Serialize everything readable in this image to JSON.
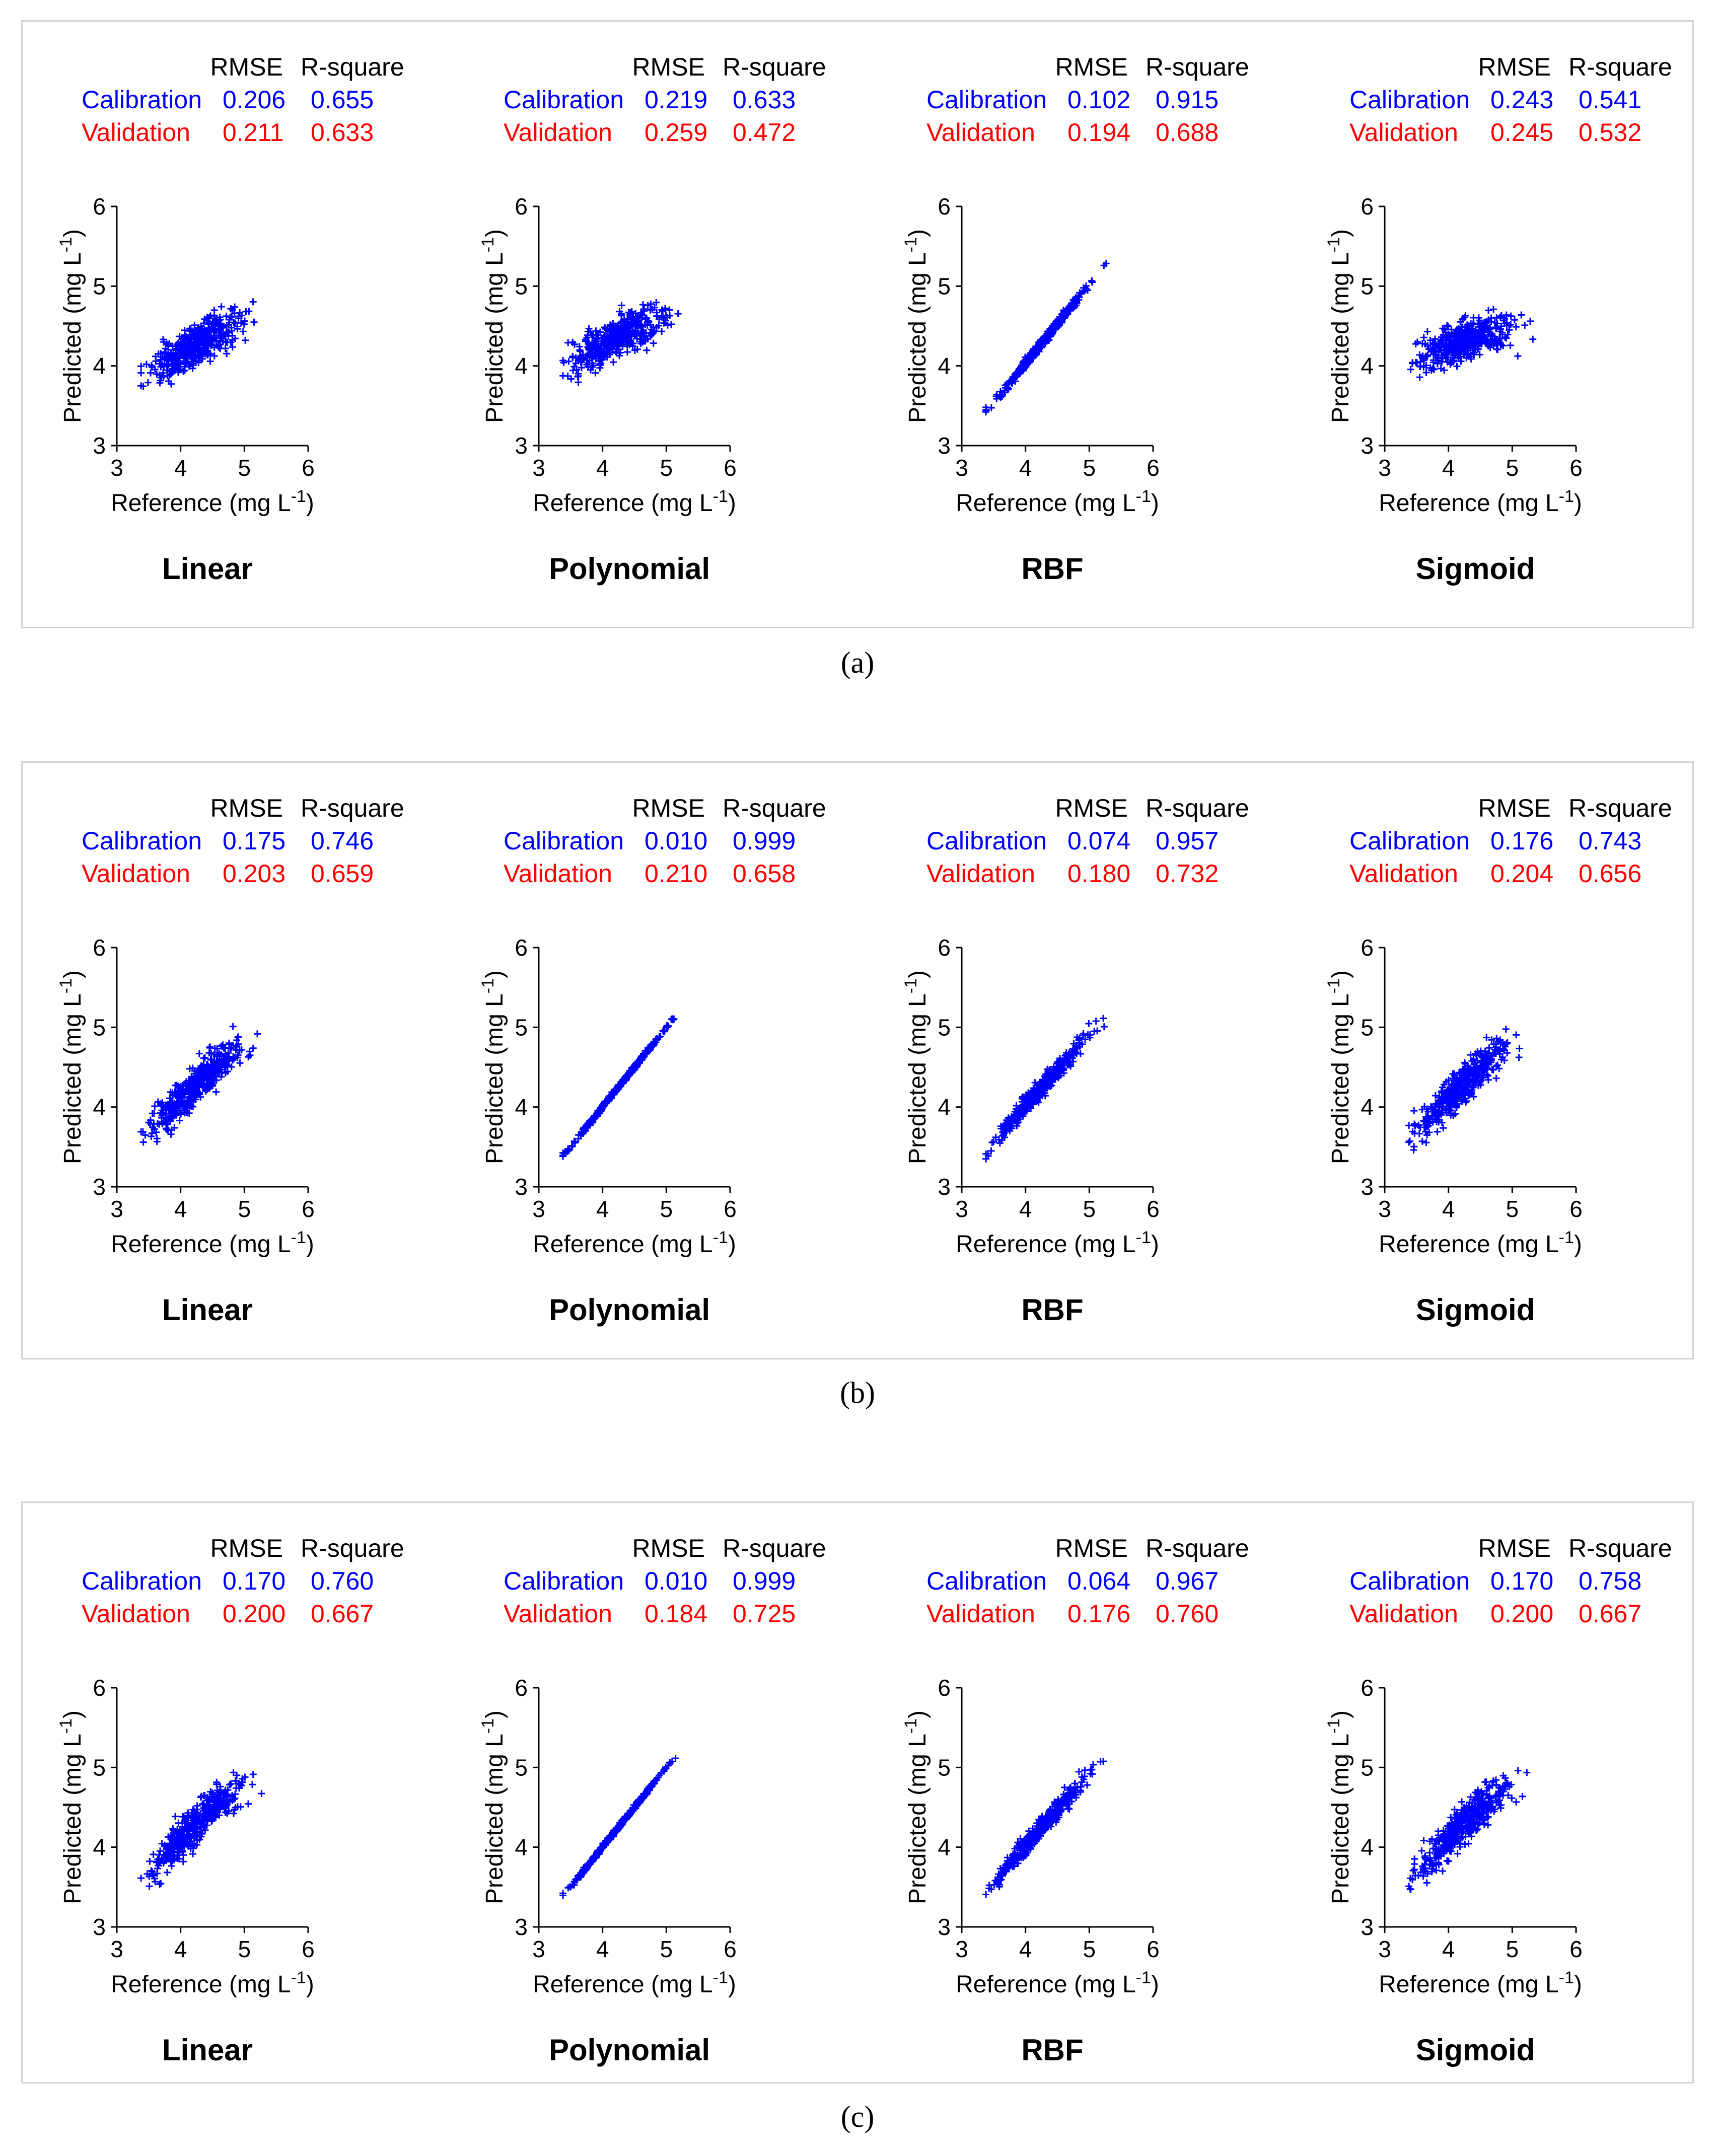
{
  "colors": {
    "calibration": "#0000ff",
    "validation": "#ff0000",
    "points": "#0000ff"
  },
  "panels": [
    {
      "label": "(a)",
      "subplots": [
        {
          "model": "Linear",
          "rmse_label": "RMSE",
          "r2_label": "R-square",
          "calibration": {
            "label": "Calibration",
            "rmse": "0.206",
            "r2": "0.655"
          },
          "validation": {
            "label": "Validation",
            "rmse": "0.211",
            "r2": "0.633"
          }
        },
        {
          "model": "Polynomial",
          "rmse_label": "RMSE",
          "r2_label": "R-square",
          "calibration": {
            "label": "Calibration",
            "rmse": "0.219",
            "r2": "0.633"
          },
          "validation": {
            "label": "Validation",
            "rmse": "0.259",
            "r2": "0.472"
          }
        },
        {
          "model": "RBF",
          "rmse_label": "RMSE",
          "r2_label": "R-square",
          "calibration": {
            "label": "Calibration",
            "rmse": "0.102",
            "r2": "0.915"
          },
          "validation": {
            "label": "Validation",
            "rmse": "0.194",
            "r2": "0.688"
          }
        },
        {
          "model": "Sigmoid",
          "rmse_label": "RMSE",
          "r2_label": "R-square",
          "calibration": {
            "label": "Calibration",
            "rmse": "0.243",
            "r2": "0.541"
          },
          "validation": {
            "label": "Validation",
            "rmse": "0.245",
            "r2": "0.532"
          }
        }
      ]
    },
    {
      "label": "(b)",
      "subplots": [
        {
          "model": "Linear",
          "rmse_label": "RMSE",
          "r2_label": "R-square",
          "calibration": {
            "label": "Calibration",
            "rmse": "0.175",
            "r2": "0.746"
          },
          "validation": {
            "label": "Validation",
            "rmse": "0.203",
            "r2": "0.659"
          }
        },
        {
          "model": "Polynomial",
          "rmse_label": "RMSE",
          "r2_label": "R-square",
          "calibration": {
            "label": "Calibration",
            "rmse": "0.010",
            "r2": "0.999"
          },
          "validation": {
            "label": "Validation",
            "rmse": "0.210",
            "r2": "0.658"
          }
        },
        {
          "model": "RBF",
          "rmse_label": "RMSE",
          "r2_label": "R-square",
          "calibration": {
            "label": "Calibration",
            "rmse": "0.074",
            "r2": "0.957"
          },
          "validation": {
            "label": "Validation",
            "rmse": "0.180",
            "r2": "0.732"
          }
        },
        {
          "model": "Sigmoid",
          "rmse_label": "RMSE",
          "r2_label": "R-square",
          "calibration": {
            "label": "Calibration",
            "rmse": "0.176",
            "r2": "0.743"
          },
          "validation": {
            "label": "Validation",
            "rmse": "0.204",
            "r2": "0.656"
          }
        }
      ]
    },
    {
      "label": "(c)",
      "subplots": [
        {
          "model": "Linear",
          "rmse_label": "RMSE",
          "r2_label": "R-square",
          "calibration": {
            "label": "Calibration",
            "rmse": "0.170",
            "r2": "0.760"
          },
          "validation": {
            "label": "Validation",
            "rmse": "0.200",
            "r2": "0.667"
          }
        },
        {
          "model": "Polynomial",
          "rmse_label": "RMSE",
          "r2_label": "R-square",
          "calibration": {
            "label": "Calibration",
            "rmse": "0.010",
            "r2": "0.999"
          },
          "validation": {
            "label": "Validation",
            "rmse": "0.184",
            "r2": "0.725"
          }
        },
        {
          "model": "RBF",
          "rmse_label": "RMSE",
          "r2_label": "R-square",
          "calibration": {
            "label": "Calibration",
            "rmse": "0.064",
            "r2": "0.967"
          },
          "validation": {
            "label": "Validation",
            "rmse": "0.176",
            "r2": "0.760"
          }
        },
        {
          "model": "Sigmoid",
          "rmse_label": "RMSE",
          "r2_label": "R-square",
          "calibration": {
            "label": "Calibration",
            "rmse": "0.170",
            "r2": "0.758"
          },
          "validation": {
            "label": "Validation",
            "rmse": "0.200",
            "r2": "0.667"
          }
        }
      ]
    }
  ],
  "chart_data": {
    "type": "scatter",
    "marker": "+",
    "xlabel": "Reference (mg L",
    "ylabel": "Predicted (mg L",
    "unit_superscript": "-1",
    "unit_close": ")",
    "xlim": [
      3,
      6
    ],
    "ylim": [
      3,
      6
    ],
    "xticks": [
      3,
      4,
      5,
      6
    ],
    "yticks": [
      3,
      4,
      5,
      6
    ],
    "reference_x": [
      3.38,
      3.5,
      3.6,
      3.7,
      3.8,
      3.9,
      4.0,
      4.1,
      4.2,
      4.3,
      4.4,
      4.5,
      4.6,
      4.7,
      4.8,
      4.9,
      5.0,
      5.1,
      5.2,
      5.3,
      5.4
    ],
    "series": [
      {
        "panel": "(a)",
        "model": "Linear",
        "predicted_trend": [
          3.88,
          3.92,
          3.96,
          4.0,
          4.04,
          4.08,
          4.13,
          4.18,
          4.23,
          4.28,
          4.33,
          4.38,
          4.42,
          4.46,
          4.5,
          4.54,
          4.57,
          4.6,
          4.62,
          4.63,
          4.63
        ],
        "spread": 0.25
      },
      {
        "panel": "(a)",
        "model": "Polynomial",
        "predicted_trend": [
          4.05,
          4.08,
          4.12,
          4.15,
          4.18,
          4.22,
          4.26,
          4.3,
          4.34,
          4.38,
          4.42,
          4.46,
          4.5,
          4.54,
          4.57,
          4.6,
          4.63,
          4.66,
          4.68,
          4.69,
          4.7
        ],
        "spread": 0.26
      },
      {
        "panel": "(a)",
        "model": "RBF",
        "predicted_trend": [
          3.43,
          3.53,
          3.63,
          3.73,
          3.83,
          3.93,
          4.03,
          4.13,
          4.23,
          4.33,
          4.43,
          4.53,
          4.63,
          4.73,
          4.83,
          4.93,
          5.03,
          5.13,
          5.23,
          5.33,
          5.4
        ],
        "spread": 0.06
      },
      {
        "panel": "(a)",
        "model": "Sigmoid",
        "predicted_trend": [
          4.1,
          4.12,
          4.14,
          4.16,
          4.18,
          4.21,
          4.24,
          4.27,
          4.3,
          4.33,
          4.36,
          4.39,
          4.42,
          4.44,
          4.46,
          4.48,
          4.49,
          4.5,
          4.5,
          4.49,
          4.48
        ],
        "spread": 0.25
      },
      {
        "panel": "(b)",
        "model": "Linear",
        "predicted_trend": [
          3.62,
          3.7,
          3.78,
          3.86,
          3.94,
          4.02,
          4.1,
          4.18,
          4.26,
          4.34,
          4.42,
          4.5,
          4.56,
          4.62,
          4.68,
          4.72,
          4.74,
          4.76,
          4.76,
          4.7,
          4.6
        ],
        "spread": 0.25
      },
      {
        "panel": "(b)",
        "model": "Polynomial",
        "predicted_trend": [
          3.4,
          3.5,
          3.6,
          3.7,
          3.8,
          3.9,
          4.0,
          4.1,
          4.2,
          4.3,
          4.4,
          4.5,
          4.6,
          4.7,
          4.8,
          4.9,
          5.0,
          5.1,
          5.2,
          5.3,
          5.4
        ],
        "spread": 0.03
      },
      {
        "panel": "(b)",
        "model": "RBF",
        "predicted_trend": [
          3.4,
          3.55,
          3.65,
          3.75,
          3.84,
          3.93,
          4.02,
          4.11,
          4.2,
          4.29,
          4.38,
          4.47,
          4.56,
          4.65,
          4.74,
          4.83,
          4.92,
          5.01,
          5.05,
          5.0,
          4.95
        ],
        "spread": 0.12
      },
      {
        "panel": "(b)",
        "model": "Sigmoid",
        "predicted_trend": [
          3.62,
          3.7,
          3.78,
          3.86,
          3.94,
          4.02,
          4.1,
          4.18,
          4.26,
          4.34,
          4.42,
          4.5,
          4.56,
          4.62,
          4.68,
          4.72,
          4.74,
          4.76,
          4.76,
          4.7,
          4.6
        ],
        "spread": 0.25
      },
      {
        "panel": "(c)",
        "model": "Linear",
        "predicted_trend": [
          3.62,
          3.7,
          3.78,
          3.86,
          3.94,
          4.02,
          4.1,
          4.18,
          4.26,
          4.34,
          4.42,
          4.5,
          4.56,
          4.62,
          4.68,
          4.72,
          4.75,
          4.77,
          4.78,
          4.72,
          4.65
        ],
        "spread": 0.25
      },
      {
        "panel": "(c)",
        "model": "Polynomial",
        "predicted_trend": [
          3.4,
          3.5,
          3.6,
          3.7,
          3.8,
          3.9,
          4.0,
          4.1,
          4.2,
          4.3,
          4.4,
          4.5,
          4.6,
          4.7,
          4.8,
          4.9,
          5.0,
          5.1,
          5.2,
          5.3,
          5.38
        ],
        "spread": 0.03
      },
      {
        "panel": "(c)",
        "model": "RBF",
        "predicted_trend": [
          3.4,
          3.55,
          3.65,
          3.75,
          3.84,
          3.93,
          4.02,
          4.11,
          4.2,
          4.29,
          4.38,
          4.47,
          4.56,
          4.65,
          4.74,
          4.83,
          4.92,
          5.01,
          5.12,
          5.0,
          4.88
        ],
        "spread": 0.12
      },
      {
        "panel": "(c)",
        "model": "Sigmoid",
        "predicted_trend": [
          3.62,
          3.7,
          3.78,
          3.86,
          3.94,
          4.02,
          4.1,
          4.18,
          4.26,
          4.34,
          4.42,
          4.5,
          4.56,
          4.62,
          4.68,
          4.72,
          4.75,
          4.77,
          4.78,
          4.72,
          4.65
        ],
        "spread": 0.25
      }
    ]
  }
}
